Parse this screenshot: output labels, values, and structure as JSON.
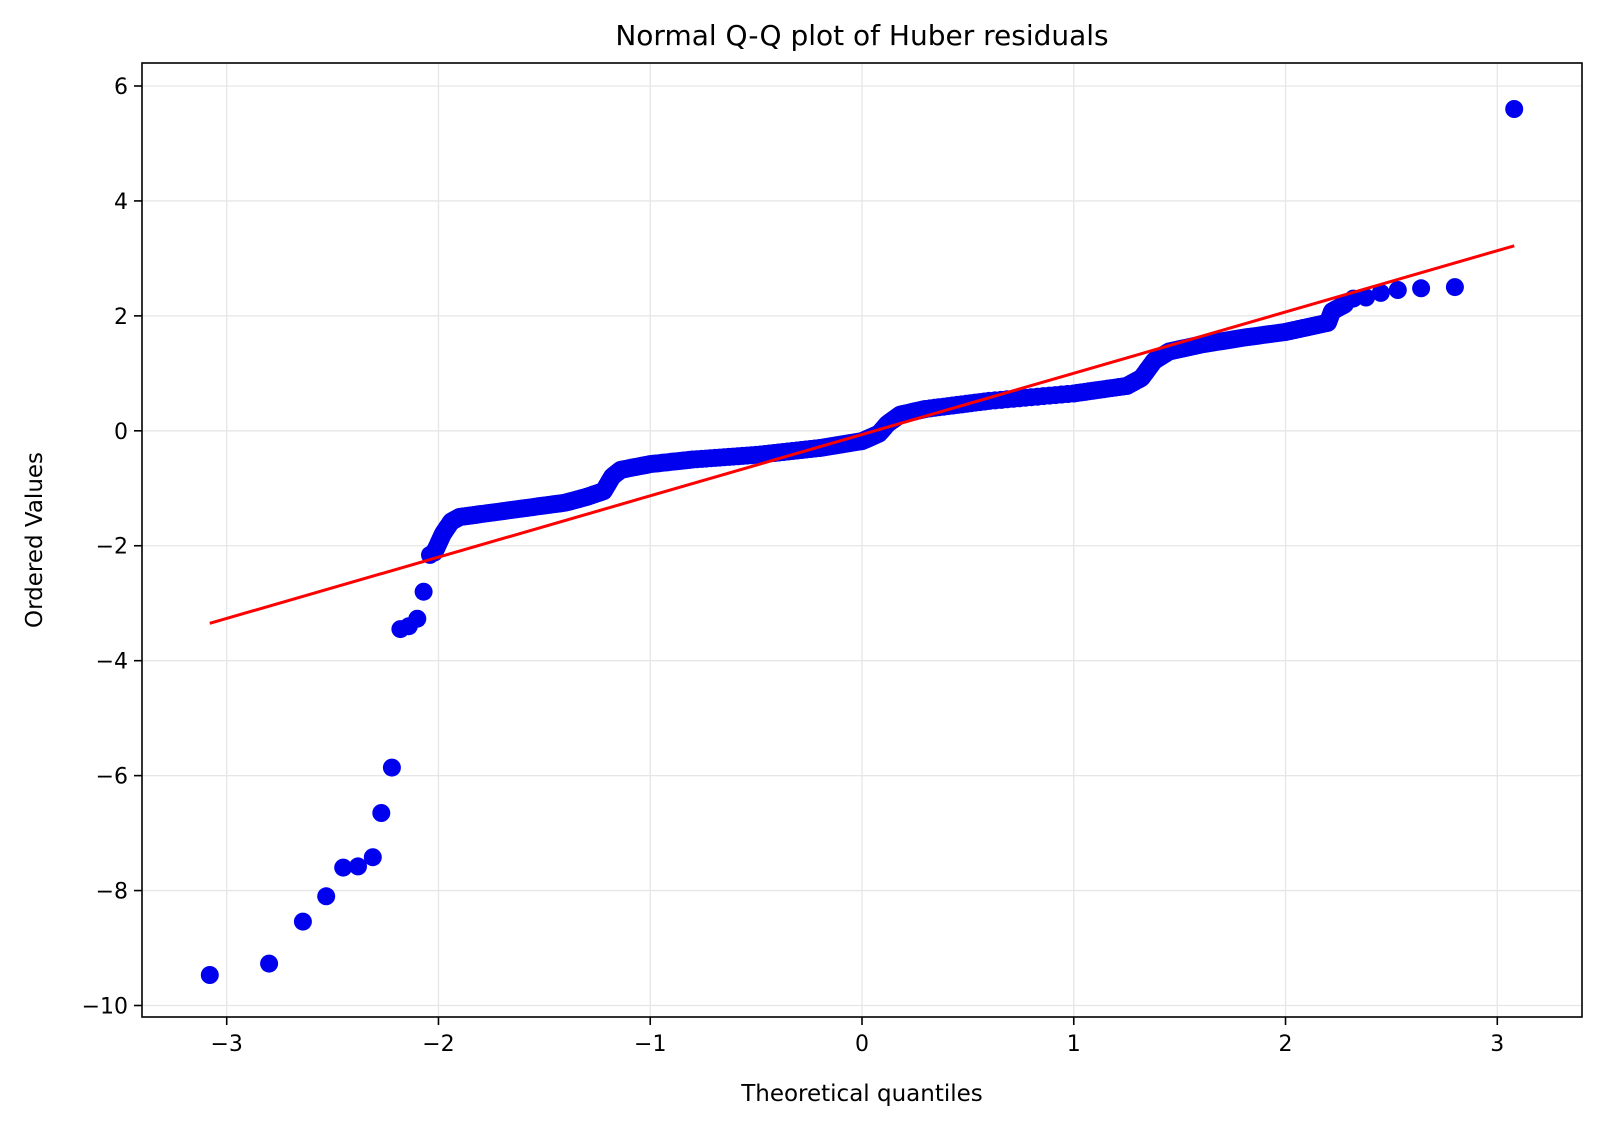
{
  "chart_data": {
    "type": "scatter",
    "title": "Normal Q-Q plot of Huber residuals",
    "xlabel": "Theoretical quantiles",
    "ylabel": "Ordered Values",
    "xlim": [
      -3.4,
      3.4
    ],
    "ylim": [
      -10.2,
      6.4
    ],
    "xticks": [
      -3,
      -2,
      -1,
      0,
      1,
      2,
      3
    ],
    "yticks": [
      -10,
      -8,
      -6,
      -4,
      -2,
      0,
      2,
      4,
      6
    ],
    "grid": true,
    "colors": {
      "points": "#0000ee",
      "fit_line": "#ff0000"
    },
    "fit_line": {
      "x": [
        -3.08,
        3.08
      ],
      "y": [
        -3.35,
        3.22
      ]
    },
    "outliers": {
      "x": [
        -3.08,
        -2.8,
        -2.64,
        -2.53,
        -2.45,
        -2.38,
        -2.31,
        -2.27,
        -2.22,
        -2.18,
        -2.14,
        -2.1,
        -2.07,
        -2.04,
        2.32,
        2.38,
        2.45,
        2.53,
        2.64,
        2.8,
        3.08
      ],
      "y": [
        -9.47,
        -9.27,
        -8.54,
        -8.1,
        -7.6,
        -7.58,
        -7.42,
        -6.65,
        -5.86,
        -3.45,
        -3.4,
        -3.27,
        -2.8,
        -2.16,
        2.3,
        2.32,
        2.4,
        2.45,
        2.48,
        2.5,
        5.6
      ]
    },
    "curve": {
      "x": [
        -2.02,
        -1.98,
        -1.94,
        -1.9,
        -1.8,
        -1.6,
        -1.4,
        -1.3,
        -1.22,
        -1.18,
        -1.14,
        -1.0,
        -0.8,
        -0.5,
        -0.2,
        0.0,
        0.08,
        0.12,
        0.18,
        0.3,
        0.6,
        1.0,
        1.25,
        1.32,
        1.38,
        1.45,
        1.6,
        1.8,
        2.0,
        2.1,
        2.2,
        2.22,
        2.28
      ],
      "y": [
        -2.12,
        -1.8,
        -1.58,
        -1.5,
        -1.45,
        -1.35,
        -1.25,
        -1.15,
        -1.05,
        -0.8,
        -0.68,
        -0.58,
        -0.5,
        -0.42,
        -0.3,
        -0.18,
        -0.05,
        0.12,
        0.28,
        0.38,
        0.52,
        0.65,
        0.78,
        0.92,
        1.22,
        1.38,
        1.5,
        1.62,
        1.72,
        1.8,
        1.88,
        2.08,
        2.2
      ]
    }
  }
}
